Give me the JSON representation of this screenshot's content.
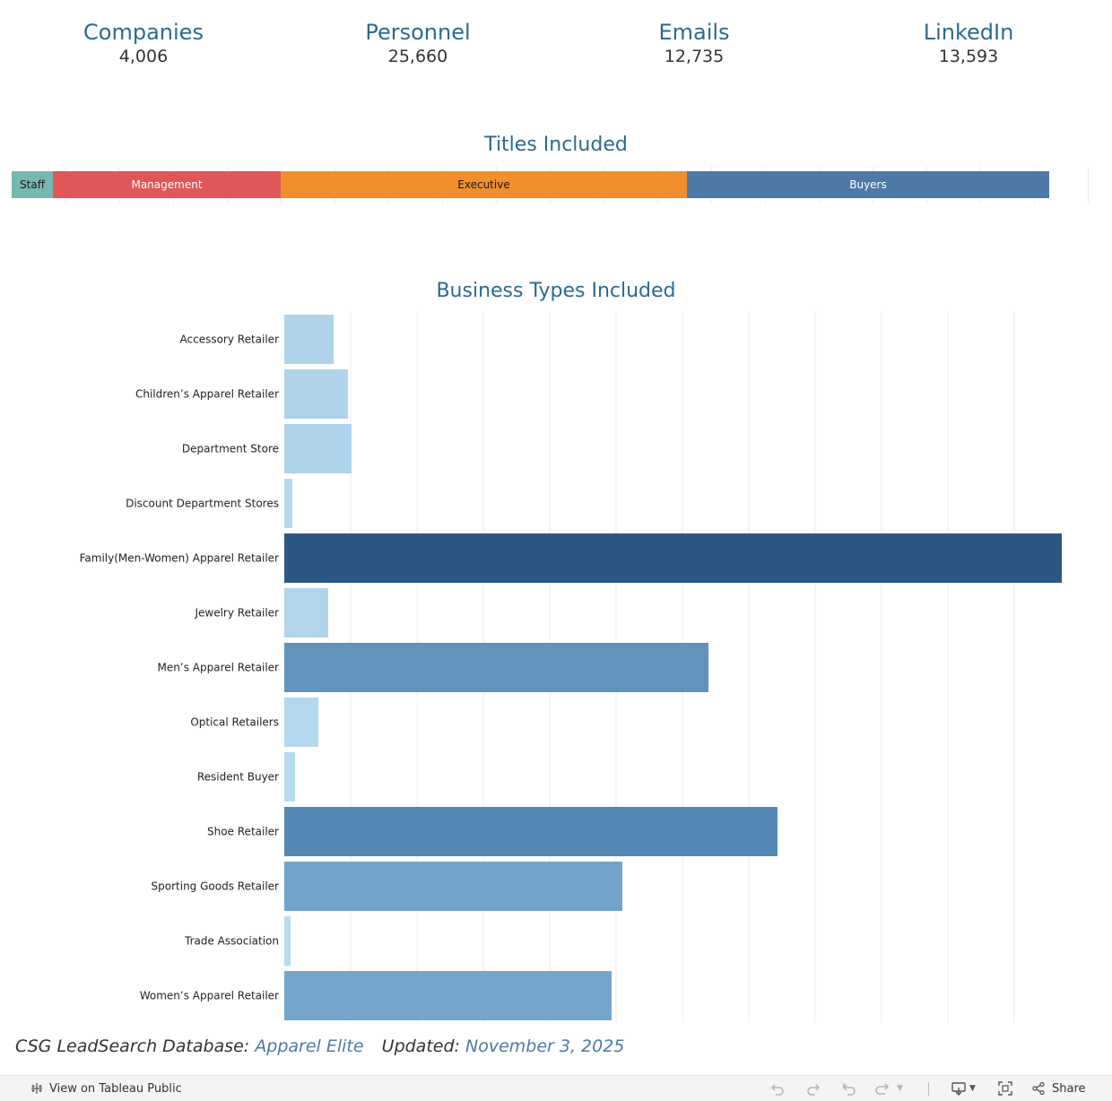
{
  "kpis": [
    {
      "label": "Companies",
      "value": "4,006"
    },
    {
      "label": "Personnel",
      "value": "25,660"
    },
    {
      "label": "Emails",
      "value": "12,735"
    },
    {
      "label": "LinkedIn",
      "value": "13,593"
    }
  ],
  "titles_section": {
    "title": "Titles Included"
  },
  "business_section": {
    "title": "Business Types Included"
  },
  "chart_data": [
    {
      "type": "bar",
      "title": "Titles Included",
      "orientation": "horizontal-stacked",
      "categories": [
        "Staff",
        "Management",
        "Executive",
        "Buyers"
      ],
      "values": [
        46,
        254,
        453,
        404
      ],
      "colors": [
        "#76b7b2",
        "#e15759",
        "#f28e2b",
        "#4e79a7"
      ],
      "label_colors": [
        "#1a1a1a",
        "#ffffff",
        "#1a1a1a",
        "#ffffff"
      ],
      "xlim": [
        0,
        1206
      ],
      "grid": true
    },
    {
      "type": "bar",
      "title": "Business Types Included",
      "orientation": "horizontal",
      "categories": [
        "Accessory Retailer",
        "Children’s Apparel Retailer",
        "Department Store",
        "Discount Department Stores",
        "Family(Men-Women) Apparel Retailer",
        "Jewelry Retailer",
        "Men’s Apparel Retailer",
        "Optical Retailers",
        "Resident Buyer",
        "Shoe Retailer",
        "Sporting Goods Retailer",
        "Trade Association",
        "Women’s Apparel Retailer"
      ],
      "values": [
        55,
        71,
        75,
        9,
        867,
        49,
        473,
        38,
        12,
        550,
        377,
        7,
        365
      ],
      "colors": [
        "#aed3eb",
        "#aed3eb",
        "#aed3eb",
        "#b3d9ef",
        "#2b5782",
        "#b0d5ec",
        "#6193bd",
        "#b4d8ee",
        "#b6daef",
        "#5587b4",
        "#72a4cb",
        "#b8dcf0",
        "#74a6cc"
      ],
      "xlim": [
        0,
        886
      ],
      "grid": true
    }
  ],
  "footer": {
    "db_label": "CSG LeadSearch Database:",
    "db_name": "Apparel Elite",
    "updated_label": "Updated:",
    "updated_date": "November 3, 2025"
  },
  "toolbar": {
    "view_label": "View on Tableau Public",
    "share_label": "Share",
    "icons": [
      "tableau-logo-icon",
      "undo-icon",
      "redo-icon",
      "revert-icon",
      "refresh-icon",
      "download-icon",
      "fullscreen-icon",
      "share-icon"
    ]
  }
}
